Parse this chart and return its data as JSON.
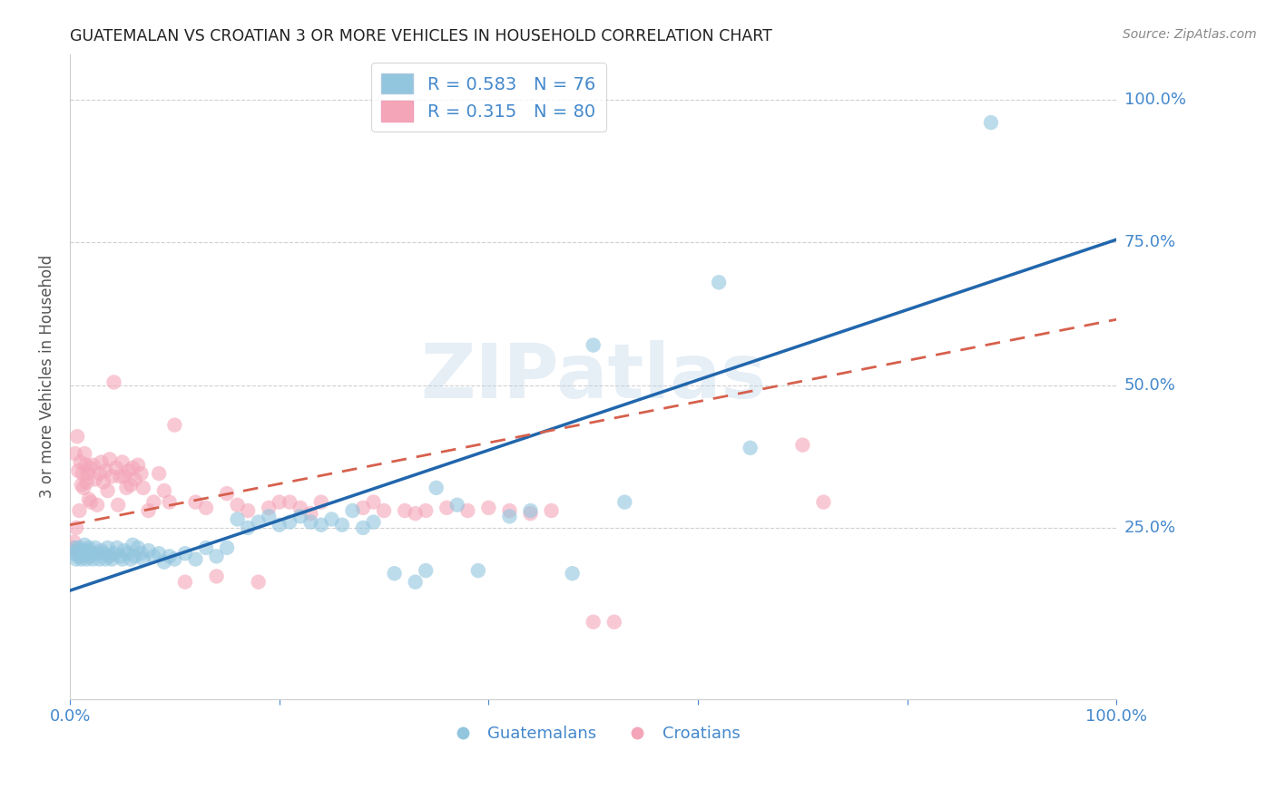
{
  "title": "GUATEMALAN VS CROATIAN 3 OR MORE VEHICLES IN HOUSEHOLD CORRELATION CHART",
  "source": "Source: ZipAtlas.com",
  "ylabel": "3 or more Vehicles in Household",
  "watermark": "ZIPatlas",
  "blue_color": "#92c5de",
  "pink_color": "#f4a6b8",
  "blue_line_color": "#2166ac",
  "pink_line_color": "#d6604d",
  "background_color": "#ffffff",
  "grid_color": "#d0d0d0",
  "title_color": "#222222",
  "axis_label_color": "#4488cc",
  "xlim": [
    0.0,
    1.0
  ],
  "ylim": [
    -0.05,
    1.08
  ],
  "blue_line": {
    "x0": 0.0,
    "y0": 0.14,
    "x1": 1.0,
    "y1": 0.755
  },
  "pink_line": {
    "x0": 0.0,
    "y0": 0.255,
    "x1": 1.0,
    "y1": 0.615
  },
  "guatemalan_points": [
    [
      0.003,
      0.205
    ],
    [
      0.005,
      0.215
    ],
    [
      0.006,
      0.195
    ],
    [
      0.007,
      0.21
    ],
    [
      0.008,
      0.2
    ],
    [
      0.009,
      0.215
    ],
    [
      0.01,
      0.205
    ],
    [
      0.011,
      0.195
    ],
    [
      0.012,
      0.21
    ],
    [
      0.013,
      0.2
    ],
    [
      0.014,
      0.22
    ],
    [
      0.015,
      0.205
    ],
    [
      0.016,
      0.195
    ],
    [
      0.017,
      0.21
    ],
    [
      0.018,
      0.215
    ],
    [
      0.019,
      0.2
    ],
    [
      0.02,
      0.205
    ],
    [
      0.022,
      0.195
    ],
    [
      0.024,
      0.215
    ],
    [
      0.026,
      0.205
    ],
    [
      0.028,
      0.195
    ],
    [
      0.03,
      0.21
    ],
    [
      0.032,
      0.205
    ],
    [
      0.034,
      0.195
    ],
    [
      0.036,
      0.215
    ],
    [
      0.038,
      0.2
    ],
    [
      0.04,
      0.195
    ],
    [
      0.042,
      0.205
    ],
    [
      0.045,
      0.215
    ],
    [
      0.048,
      0.2
    ],
    [
      0.05,
      0.195
    ],
    [
      0.052,
      0.21
    ],
    [
      0.055,
      0.205
    ],
    [
      0.058,
      0.195
    ],
    [
      0.06,
      0.22
    ],
    [
      0.062,
      0.2
    ],
    [
      0.065,
      0.215
    ],
    [
      0.068,
      0.205
    ],
    [
      0.07,
      0.195
    ],
    [
      0.075,
      0.21
    ],
    [
      0.08,
      0.2
    ],
    [
      0.085,
      0.205
    ],
    [
      0.09,
      0.19
    ],
    [
      0.095,
      0.2
    ],
    [
      0.1,
      0.195
    ],
    [
      0.11,
      0.205
    ],
    [
      0.12,
      0.195
    ],
    [
      0.13,
      0.215
    ],
    [
      0.14,
      0.2
    ],
    [
      0.15,
      0.215
    ],
    [
      0.16,
      0.265
    ],
    [
      0.17,
      0.25
    ],
    [
      0.18,
      0.26
    ],
    [
      0.19,
      0.27
    ],
    [
      0.2,
      0.255
    ],
    [
      0.21,
      0.26
    ],
    [
      0.22,
      0.27
    ],
    [
      0.23,
      0.26
    ],
    [
      0.24,
      0.255
    ],
    [
      0.25,
      0.265
    ],
    [
      0.26,
      0.255
    ],
    [
      0.27,
      0.28
    ],
    [
      0.28,
      0.25
    ],
    [
      0.29,
      0.26
    ],
    [
      0.31,
      0.17
    ],
    [
      0.33,
      0.155
    ],
    [
      0.34,
      0.175
    ],
    [
      0.35,
      0.32
    ],
    [
      0.37,
      0.29
    ],
    [
      0.39,
      0.175
    ],
    [
      0.42,
      0.27
    ],
    [
      0.44,
      0.28
    ],
    [
      0.48,
      0.17
    ],
    [
      0.5,
      0.57
    ],
    [
      0.53,
      0.295
    ],
    [
      0.62,
      0.68
    ],
    [
      0.65,
      0.39
    ],
    [
      0.88,
      0.96
    ]
  ],
  "croatian_points": [
    [
      0.003,
      0.215
    ],
    [
      0.004,
      0.225
    ],
    [
      0.005,
      0.38
    ],
    [
      0.006,
      0.25
    ],
    [
      0.007,
      0.41
    ],
    [
      0.008,
      0.35
    ],
    [
      0.009,
      0.28
    ],
    [
      0.01,
      0.365
    ],
    [
      0.011,
      0.325
    ],
    [
      0.012,
      0.345
    ],
    [
      0.013,
      0.32
    ],
    [
      0.014,
      0.38
    ],
    [
      0.015,
      0.36
    ],
    [
      0.016,
      0.33
    ],
    [
      0.017,
      0.345
    ],
    [
      0.018,
      0.3
    ],
    [
      0.019,
      0.355
    ],
    [
      0.02,
      0.295
    ],
    [
      0.022,
      0.36
    ],
    [
      0.024,
      0.335
    ],
    [
      0.026,
      0.29
    ],
    [
      0.028,
      0.345
    ],
    [
      0.03,
      0.365
    ],
    [
      0.032,
      0.33
    ],
    [
      0.034,
      0.35
    ],
    [
      0.036,
      0.315
    ],
    [
      0.038,
      0.37
    ],
    [
      0.04,
      0.34
    ],
    [
      0.042,
      0.505
    ],
    [
      0.044,
      0.355
    ],
    [
      0.046,
      0.29
    ],
    [
      0.048,
      0.34
    ],
    [
      0.05,
      0.365
    ],
    [
      0.052,
      0.34
    ],
    [
      0.054,
      0.32
    ],
    [
      0.056,
      0.35
    ],
    [
      0.058,
      0.325
    ],
    [
      0.06,
      0.355
    ],
    [
      0.062,
      0.335
    ],
    [
      0.065,
      0.36
    ],
    [
      0.068,
      0.345
    ],
    [
      0.07,
      0.32
    ],
    [
      0.075,
      0.28
    ],
    [
      0.08,
      0.295
    ],
    [
      0.085,
      0.345
    ],
    [
      0.09,
      0.315
    ],
    [
      0.095,
      0.295
    ],
    [
      0.1,
      0.43
    ],
    [
      0.11,
      0.155
    ],
    [
      0.12,
      0.295
    ],
    [
      0.13,
      0.285
    ],
    [
      0.14,
      0.165
    ],
    [
      0.15,
      0.31
    ],
    [
      0.16,
      0.29
    ],
    [
      0.17,
      0.28
    ],
    [
      0.18,
      0.155
    ],
    [
      0.19,
      0.285
    ],
    [
      0.2,
      0.295
    ],
    [
      0.21,
      0.295
    ],
    [
      0.22,
      0.285
    ],
    [
      0.23,
      0.275
    ],
    [
      0.24,
      0.295
    ],
    [
      0.28,
      0.285
    ],
    [
      0.29,
      0.295
    ],
    [
      0.3,
      0.28
    ],
    [
      0.32,
      0.28
    ],
    [
      0.33,
      0.275
    ],
    [
      0.34,
      0.28
    ],
    [
      0.36,
      0.285
    ],
    [
      0.38,
      0.28
    ],
    [
      0.4,
      0.285
    ],
    [
      0.42,
      0.28
    ],
    [
      0.44,
      0.275
    ],
    [
      0.46,
      0.28
    ],
    [
      0.5,
      0.085
    ],
    [
      0.52,
      0.085
    ],
    [
      0.7,
      0.395
    ],
    [
      0.72,
      0.295
    ]
  ]
}
